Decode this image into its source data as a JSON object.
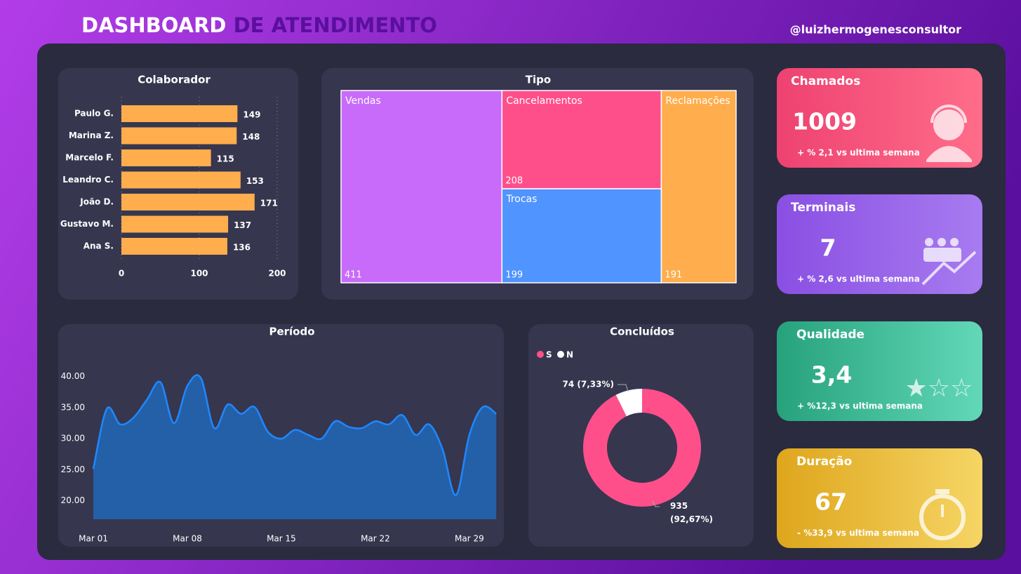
{
  "header": {
    "title_main": "DASHBOARD",
    "title_rest": "DE ATENDIMENTO",
    "handle": "@luizhermogenesconsultor"
  },
  "chart_data": [
    {
      "type": "hbar",
      "title": "Colaborador",
      "categories": [
        "Paulo G.",
        "Marina Z.",
        "Marcelo F.",
        "Leandro C.",
        "João D.",
        "Gustavo M.",
        "Ana S."
      ],
      "values": [
        149,
        148,
        115,
        153,
        171,
        137,
        136
      ],
      "color": "#ffad4d",
      "xlim": [
        0,
        200
      ],
      "xticks": [
        0,
        100,
        200
      ],
      "grid": true
    },
    {
      "type": "treemap",
      "title": "Tipo",
      "categories": [
        "Vendas",
        "Cancelamentos",
        "Trocas",
        "Reclamações"
      ],
      "values": [
        411,
        208,
        199,
        191
      ],
      "colors": [
        "#c86bfa",
        "#ff4f8b",
        "#4f94ff",
        "#ffad4d"
      ]
    },
    {
      "type": "area",
      "title": "Período",
      "categories": [
        "Mar 01",
        null,
        null,
        null,
        null,
        null,
        null,
        "Mar 08",
        null,
        null,
        null,
        null,
        null,
        null,
        "Mar 15",
        null,
        null,
        null,
        null,
        null,
        null,
        "Mar 22",
        null,
        null,
        null,
        null,
        null,
        null,
        "Mar 29",
        null,
        null
      ],
      "values": [
        25.1,
        34.8,
        32.3,
        33.4,
        36.3,
        39.1,
        32.5,
        38.5,
        39.8,
        31.7,
        35.5,
        34.0,
        35.1,
        31.1,
        30.0,
        31.4,
        30.6,
        30.0,
        32.8,
        31.9,
        31.7,
        32.8,
        32.3,
        33.8,
        30.6,
        32.3,
        28.3,
        20.9,
        30.6,
        35.1,
        34.0
      ],
      "color": "#1e88ff",
      "fill": "#2460a8",
      "ylim": [
        17,
        42
      ],
      "yticks": [
        {
          "value": 20,
          "label": "20.00"
        },
        {
          "value": 25,
          "label": "25.00"
        },
        {
          "value": 30,
          "label": "30.00"
        },
        {
          "value": 35,
          "label": "35.00"
        },
        {
          "value": 40,
          "label": "40.00"
        }
      ]
    },
    {
      "type": "donut",
      "title": "Concluídos",
      "categories": [
        "S",
        "N"
      ],
      "values": [
        935,
        74
      ],
      "value_labels": [
        "935 (92,67%)",
        "74 (7,33%)"
      ],
      "colors": [
        "#ff4f8b",
        "#ffffff"
      ]
    }
  ],
  "kpis": [
    {
      "title": "Chamados",
      "value": "1009",
      "note": "+ % 2,1 vs ultima semana"
    },
    {
      "title": "Terminais",
      "value": "7",
      "note": "+ % 2,6 vs ultima semana"
    },
    {
      "title": "Qualidade",
      "value": "3,4",
      "note": "+ %12,3 vs ultima semana"
    },
    {
      "title": "Duração",
      "value": "67",
      "note": "- %33,9 vs ultima semana"
    }
  ]
}
